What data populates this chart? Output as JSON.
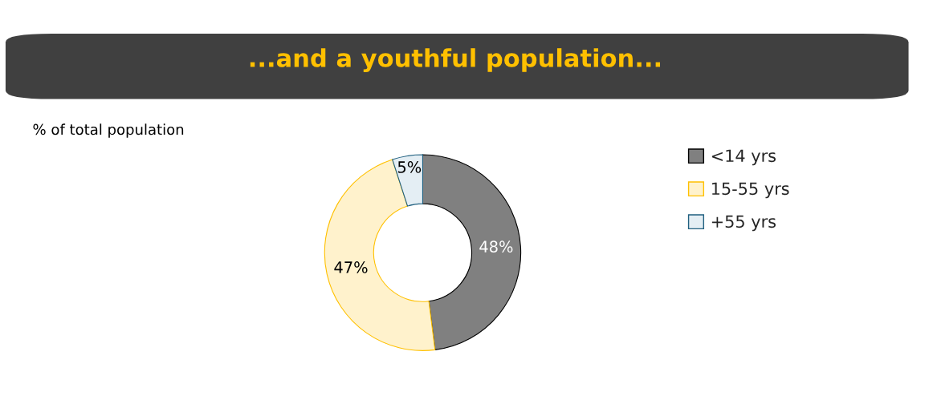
{
  "chart_data": {
    "type": "donut",
    "title": "...and a youthful population...",
    "subtitle": "% of total population",
    "categories": [
      "<14 yrs",
      "15-55 yrs",
      "+55 yrs"
    ],
    "values": [
      48,
      47,
      5
    ],
    "colors": [
      "#808080",
      "#fff2cc",
      "#e4eef4"
    ],
    "value_labels": [
      "48%",
      "47%",
      "5%"
    ],
    "legend": "right"
  }
}
